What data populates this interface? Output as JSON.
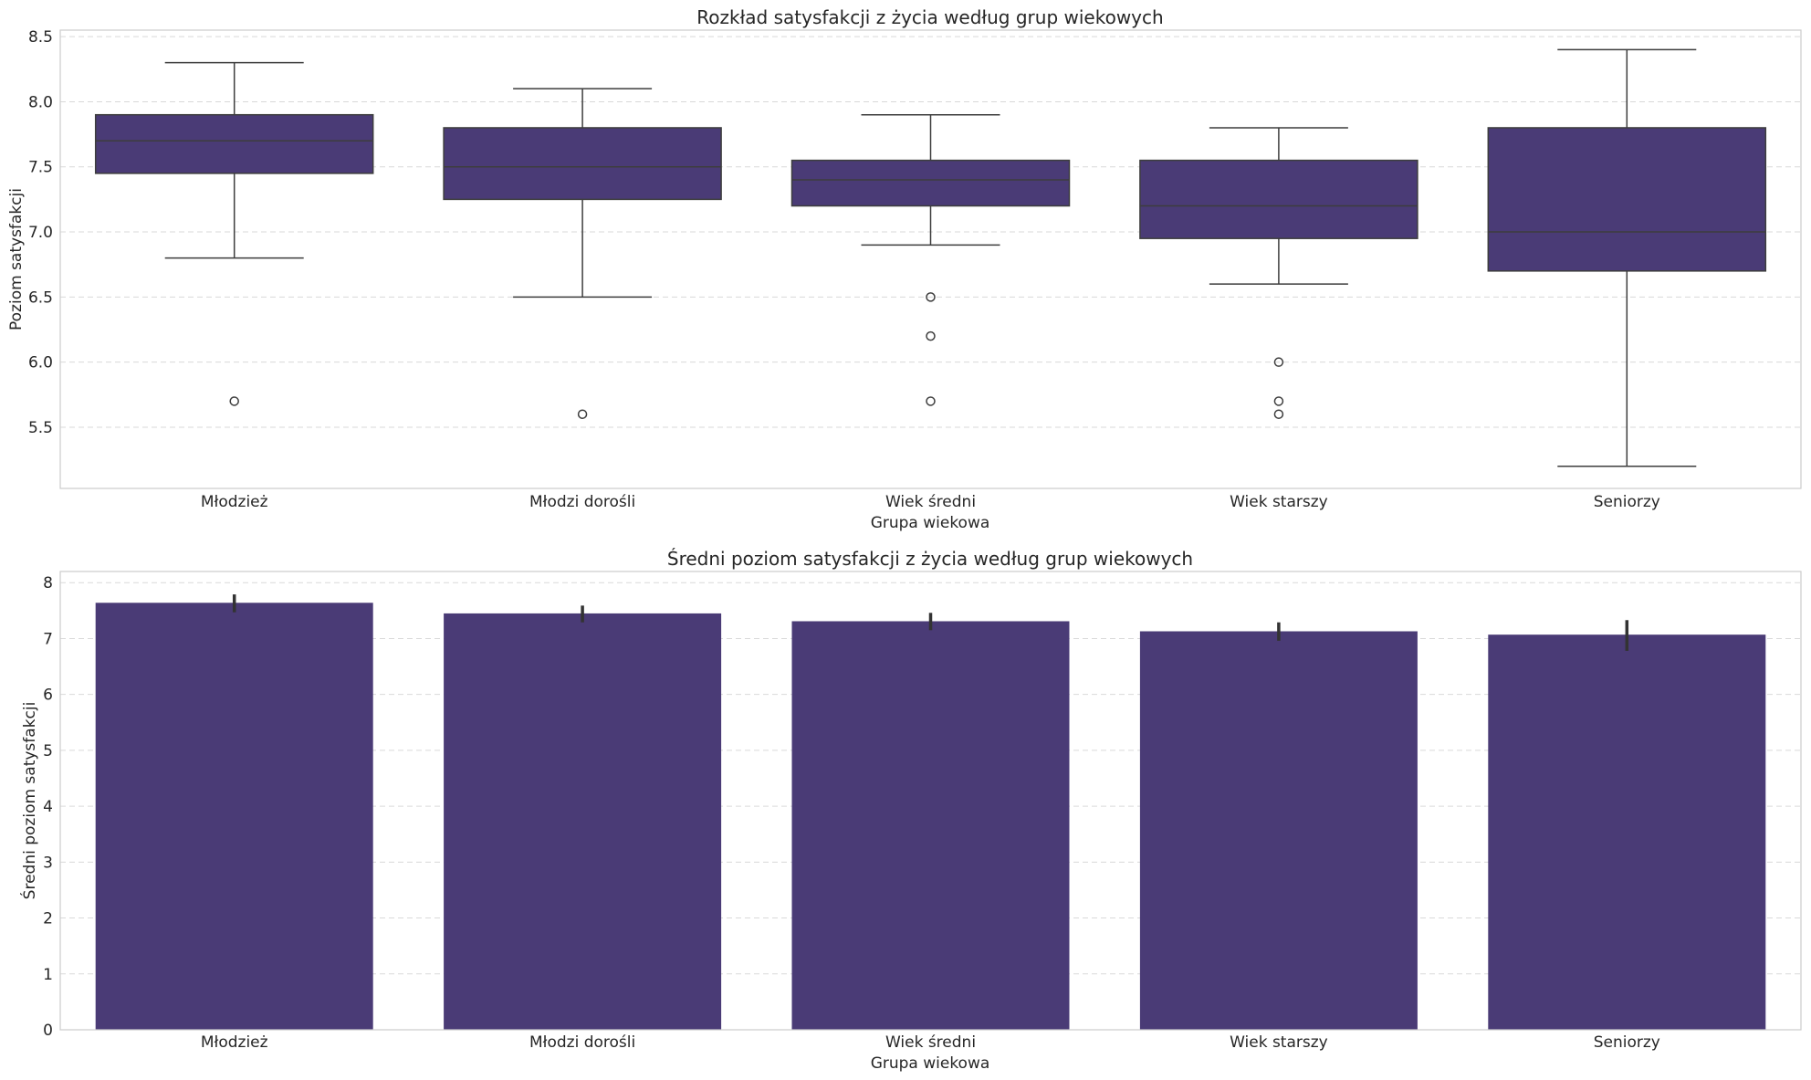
{
  "chart_data": [
    {
      "type": "box",
      "title": "Rozkład satysfakcji z życia według grup wiekowych",
      "xlabel": "Grupa wiekowa",
      "ylabel": "Poziom satysfakcji",
      "categories": [
        "Młodzież",
        "Młodzi dorośli",
        "Wiek średni",
        "Wiek starszy",
        "Seniorzy"
      ],
      "yticks": [
        "5.5",
        "6.0",
        "6.5",
        "7.0",
        "7.5",
        "8.0",
        "8.5"
      ],
      "ylim": [
        5.03,
        8.55
      ],
      "grid": true,
      "boxes": [
        {
          "whisker_low": 6.8,
          "q1": 7.45,
          "median": 7.7,
          "q3": 7.9,
          "whisker_high": 8.3,
          "outliers": [
            5.7
          ]
        },
        {
          "whisker_low": 6.5,
          "q1": 7.25,
          "median": 7.5,
          "q3": 7.8,
          "whisker_high": 8.1,
          "outliers": [
            5.6
          ]
        },
        {
          "whisker_low": 6.9,
          "q1": 7.2,
          "median": 7.4,
          "q3": 7.55,
          "whisker_high": 7.9,
          "outliers": [
            6.5,
            6.2,
            5.7
          ]
        },
        {
          "whisker_low": 6.6,
          "q1": 6.95,
          "median": 7.2,
          "q3": 7.55,
          "whisker_high": 7.8,
          "outliers": [
            6.0,
            5.7,
            5.6
          ]
        },
        {
          "whisker_low": 5.2,
          "q1": 6.7,
          "median": 7.0,
          "q3": 7.8,
          "whisker_high": 8.4,
          "outliers": []
        }
      ]
    },
    {
      "type": "bar",
      "title": "Średni poziom satysfakcji z życia według grup wiekowych",
      "xlabel": "Grupa wiekowa",
      "ylabel": "Średni poziom satysfakcji",
      "categories": [
        "Młodzież",
        "Młodzi dorośli",
        "Wiek średni",
        "Wiek starszy",
        "Seniorzy"
      ],
      "yticks": [
        "0",
        "1",
        "2",
        "3",
        "4",
        "5",
        "6",
        "7",
        "8"
      ],
      "ylim": [
        0,
        8.2
      ],
      "grid": true,
      "values": [
        7.64,
        7.45,
        7.31,
        7.13,
        7.07
      ],
      "error_low": [
        7.47,
        7.29,
        7.15,
        6.96,
        6.78
      ],
      "error_high": [
        7.79,
        7.59,
        7.46,
        7.29,
        7.33
      ]
    }
  ],
  "colors": {
    "bar_fill": "#4a3b76",
    "box_fill": "#4a3b76",
    "line": "#3d3d3d",
    "grid": "#d9d9d9",
    "axes_border": "#cccccc"
  }
}
